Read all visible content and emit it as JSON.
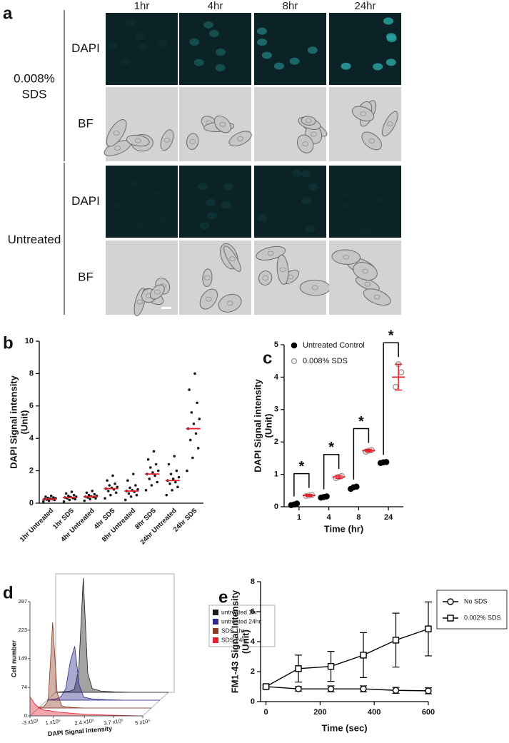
{
  "panel_labels": [
    "a",
    "b",
    "c",
    "d",
    "e"
  ],
  "panel_a": {
    "columns": [
      "1hr",
      "4hr",
      "8hr",
      "24hr"
    ],
    "groups": [
      {
        "label": [
          "0.008%",
          "SDS"
        ],
        "rows": [
          "DAPI",
          "BF"
        ]
      },
      {
        "label": [
          "Untreated"
        ],
        "rows": [
          "DAPI",
          "BF"
        ]
      }
    ]
  },
  "chart_data": [
    {
      "type": "dot",
      "ylabel": [
        "DAPI Signal intensity",
        "(Unit)"
      ],
      "categories": [
        "1hr Untreated",
        "1hr SDS",
        "4hr Untreated",
        "4hr SDS",
        "8hr Untreated",
        "8hr SDS",
        "24hr Untreated",
        "24hr SDS"
      ],
      "values": [
        0.25,
        0.35,
        0.4,
        0.9,
        0.75,
        1.8,
        1.4,
        4.6
      ],
      "points": [
        [
          0.1,
          0.15,
          0.2,
          0.22,
          0.25,
          0.25,
          0.28,
          0.3,
          0.32,
          0.35,
          0.4,
          0.45
        ],
        [
          0.1,
          0.2,
          0.25,
          0.3,
          0.32,
          0.35,
          0.38,
          0.4,
          0.45,
          0.5,
          0.6,
          0.7
        ],
        [
          0.15,
          0.25,
          0.3,
          0.35,
          0.38,
          0.4,
          0.42,
          0.45,
          0.5,
          0.55,
          0.65,
          0.75
        ],
        [
          0.3,
          0.5,
          0.65,
          0.75,
          0.85,
          0.9,
          0.95,
          1.0,
          1.1,
          1.2,
          1.4,
          1.7
        ],
        [
          0.2,
          0.4,
          0.5,
          0.6,
          0.7,
          0.75,
          0.8,
          0.85,
          0.95,
          1.1,
          1.4,
          1.8
        ],
        [
          0.8,
          1.1,
          1.3,
          1.5,
          1.7,
          1.8,
          1.9,
          2.0,
          2.2,
          2.4,
          2.7,
          3.2
        ],
        [
          0.5,
          0.8,
          1.0,
          1.2,
          1.3,
          1.4,
          1.5,
          1.6,
          1.8,
          2.0,
          2.4,
          2.9
        ],
        [
          2.0,
          2.8,
          3.4,
          3.9,
          4.3,
          4.6,
          4.9,
          5.2,
          5.6,
          6.2,
          7.0,
          8.0
        ]
      ],
      "color": "#1a1a1a",
      "mean_color": "#e0202a",
      "ylim": [
        0,
        10
      ],
      "yticks": [
        0,
        2,
        4,
        6,
        8,
        10
      ]
    },
    {
      "type": "strip",
      "ylabel": [
        "DAPI Signal intensity",
        "(Unit)"
      ],
      "xlabel": "Time (hr)",
      "categories": [
        "1",
        "4",
        "8",
        "24"
      ],
      "series": [
        {
          "name": "Untreated Control",
          "color": "#000000",
          "marker": "filled",
          "points": [
            [
              0.05,
              0.07,
              0.1
            ],
            [
              0.28,
              0.3,
              0.32
            ],
            [
              0.55,
              0.6,
              0.62
            ],
            [
              1.35,
              1.37,
              1.38
            ]
          ]
        },
        {
          "name": "0.008% SDS",
          "color": "#a89a9a",
          "marker": "open",
          "points": [
            [
              0.33,
              0.35,
              0.36
            ],
            [
              0.88,
              0.92,
              0.95
            ],
            [
              1.7,
              1.73,
              1.75
            ],
            [
              3.7,
              4.4,
              4.15
            ]
          ],
          "values": [
            0.35,
            0.92,
            1.73,
            4.0
          ],
          "errors": [
            0.03,
            0.05,
            0.04,
            0.4
          ],
          "mean_color": "#e0202a"
        }
      ],
      "annotations": [
        "*",
        "*",
        "*",
        "*"
      ],
      "ylim": [
        0,
        5
      ],
      "yticks": [
        0,
        1,
        2,
        3,
        4,
        5
      ]
    },
    {
      "type": "histogram3d",
      "ylabel": "Cell number",
      "xlabel": "DAPI Signal intensity",
      "x": [
        -3000,
        20000,
        40000,
        60000,
        80000,
        100000,
        120000,
        140000,
        160000,
        200000,
        260000,
        340000,
        420000,
        500000
      ],
      "series": [
        {
          "name": "untreated 1hr",
          "color": "#1a1a1a",
          "values": [
            0,
            1,
            2,
            3,
            8,
            60,
            297,
            50,
            10,
            3,
            1,
            0,
            0,
            0
          ]
        },
        {
          "name": "untreated 24hr",
          "color": "#2a2a8a",
          "values": [
            0,
            2,
            4,
            10,
            30,
            100,
            140,
            40,
            8,
            3,
            1,
            0,
            0,
            0
          ]
        },
        {
          "name": "SDS 1hr",
          "color": "#8a3a22",
          "values": [
            2,
            3,
            20,
            223,
            40,
            6,
            3,
            2,
            1,
            0,
            0,
            0,
            0,
            0
          ]
        },
        {
          "name": "SDS 24hr",
          "color": "#e0202a",
          "values": [
            50,
            30,
            20,
            15,
            14,
            12,
            10,
            9,
            8,
            6,
            4,
            2,
            1,
            0
          ]
        }
      ],
      "xlim": [
        -3000,
        500000
      ],
      "xticks": [
        {
          "value": -3000,
          "label": "-3 x10³"
        },
        {
          "value": 100000,
          "label": "1 x10⁵"
        },
        {
          "value": 240000,
          "label": "2.4 x10⁵"
        },
        {
          "value": 370000,
          "label": "3.7 x10⁵"
        },
        {
          "value": 500000,
          "label": "5 x10⁵"
        }
      ],
      "ylim": [
        0,
        297
      ],
      "yticks": [
        0,
        74,
        149,
        223,
        297
      ]
    },
    {
      "type": "line",
      "ylabel": [
        "FM1-43 Signal Intensity",
        "(Unit)"
      ],
      "xlabel": "Time (sec)",
      "x": [
        0,
        120,
        240,
        360,
        480,
        600
      ],
      "series": [
        {
          "name": "No SDS",
          "color": "#000000",
          "marker": "circle",
          "values": [
            1.0,
            0.85,
            0.85,
            0.85,
            0.75,
            0.72
          ],
          "errors": [
            0.1,
            0.15,
            0.2,
            0.2,
            0.2,
            0.2
          ]
        },
        {
          "name": "0.002% SDS",
          "color": "#000000",
          "marker": "square",
          "values": [
            1.0,
            2.2,
            2.35,
            3.1,
            4.1,
            4.85
          ],
          "errors": [
            0.1,
            0.9,
            1.0,
            1.5,
            1.8,
            1.8
          ]
        }
      ],
      "xlim": [
        -20,
        600
      ],
      "xticks": [
        0,
        200,
        400,
        600
      ],
      "ylim": [
        0,
        8
      ],
      "yticks": [
        0,
        2,
        4,
        6,
        8
      ]
    }
  ]
}
